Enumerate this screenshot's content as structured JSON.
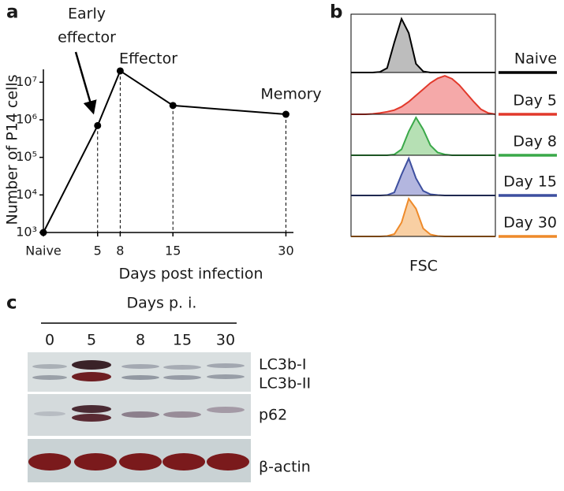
{
  "chart_data": [
    {
      "type": "line",
      "panel": "a",
      "x": [
        -2.2,
        5,
        8,
        15,
        30
      ],
      "values": [
        1000,
        700000,
        20000000,
        2400000,
        1400000
      ],
      "xlim": [
        -2.2,
        31
      ],
      "xticks": [
        {
          "value": -2.2,
          "label": "Naive"
        },
        5,
        8,
        15,
        30
      ],
      "ylim": [
        1000,
        22000000
      ],
      "yticks": [
        {
          "value": 1000,
          "label": "10³"
        },
        {
          "value": 10000,
          "label": "10⁴"
        },
        {
          "value": 100000,
          "label": "10⁵"
        },
        {
          "value": 1000000,
          "label": "10⁶"
        },
        {
          "value": 10000000,
          "label": "10⁷"
        }
      ],
      "log_y": true,
      "color": "#000000",
      "x_label": "Days post infection",
      "y_label": "Number of P14 cells",
      "annotations": [
        "Early",
        "effector",
        "Effector",
        "Memory"
      ]
    },
    {
      "type": "area",
      "panel": "b",
      "x": [
        0,
        1,
        2,
        3,
        4,
        5,
        6,
        7,
        8,
        9,
        10,
        11,
        12,
        13,
        14,
        15,
        16,
        17,
        18,
        19,
        20
      ],
      "xlim": [
        0,
        20
      ],
      "x_label": "FSC",
      "series": [
        {
          "name": "Naive",
          "color": "#000000",
          "fill": "#bdbdbd",
          "values": [
            0,
            0,
            0,
            0,
            1,
            8,
            55,
            98,
            72,
            16,
            2,
            0,
            0,
            0,
            0,
            0,
            0,
            0,
            0,
            0,
            0
          ]
        },
        {
          "name": "Day 5",
          "color": "#e2392b",
          "fill": "#f5a9a9",
          "values": [
            0,
            0,
            0,
            1,
            3,
            6,
            10,
            18,
            30,
            45,
            60,
            75,
            86,
            92,
            85,
            70,
            50,
            30,
            12,
            3,
            0
          ]
        },
        {
          "name": "Day 8",
          "color": "#3aa849",
          "fill": "#b6e0b4",
          "values": [
            0,
            0,
            0,
            0,
            0,
            0,
            2,
            15,
            60,
            95,
            65,
            25,
            7,
            2,
            0,
            0,
            0,
            0,
            0,
            0,
            0
          ]
        },
        {
          "name": "Day 15",
          "color": "#3d4f9f",
          "fill": "#b3b6df",
          "values": [
            0,
            0,
            0,
            0,
            0,
            1,
            8,
            55,
            97,
            45,
            12,
            3,
            1,
            0,
            0,
            0,
            0,
            0,
            0,
            0,
            0
          ]
        },
        {
          "name": "Day 30",
          "color": "#ee8a2a",
          "fill": "#f8cfa3",
          "values": [
            0,
            0,
            0,
            0,
            0,
            1,
            6,
            35,
            95,
            70,
            20,
            5,
            1,
            0,
            0,
            0,
            0,
            0,
            0,
            0,
            0
          ]
        }
      ]
    }
  ],
  "blot": {
    "panel": "c",
    "title": "Days p. i.",
    "lanes": [
      "0",
      "5",
      "8",
      "15",
      "30"
    ],
    "rows": [
      "LC3b-I",
      "LC3b-II",
      "p62",
      "β-actin"
    ]
  }
}
